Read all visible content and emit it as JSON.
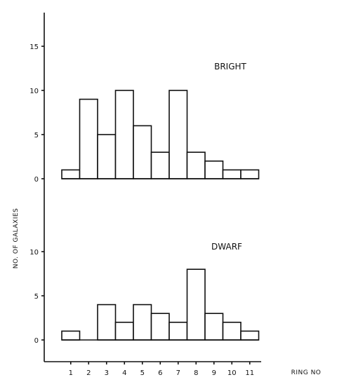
{
  "chart_data": {
    "type": "bar",
    "ylabel": "NO. OF GALAXIES",
    "xlabel": "RING NO",
    "categories": [
      "1",
      "2",
      "3",
      "4",
      "5",
      "6",
      "7",
      "8",
      "9",
      "10",
      "11"
    ],
    "panels": [
      {
        "title": "BRIGHT",
        "values": [
          1,
          9,
          5,
          10,
          6,
          3,
          10,
          3,
          2,
          1,
          1
        ],
        "ylim": [
          0,
          18
        ],
        "yticks": [
          0,
          5,
          10,
          15
        ]
      },
      {
        "title": "DWARF",
        "values": [
          1,
          0,
          4,
          2,
          4,
          3,
          2,
          8,
          3,
          2,
          1
        ],
        "ylim": [
          0,
          10
        ],
        "yticks": [
          0,
          5,
          10
        ]
      }
    ],
    "grid": false
  },
  "colors": {
    "ink": "#111111",
    "background": "#ffffff"
  }
}
